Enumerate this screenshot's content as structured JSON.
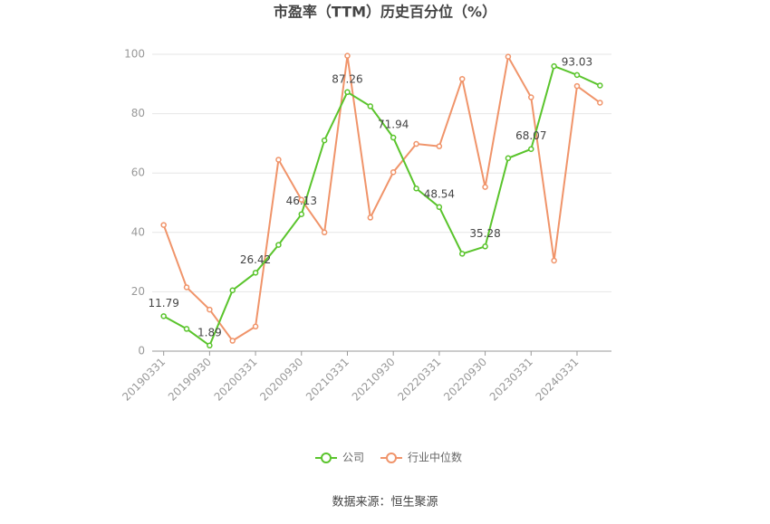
{
  "chart_data": {
    "type": "line",
    "title": "市盈率（TTM）历史百分位（%）",
    "source": "数据来源：恒生聚源",
    "categories": [
      "20190331",
      null,
      "20190930",
      null,
      "20200331",
      null,
      "20200930",
      null,
      "20210331",
      null,
      "20210930",
      null,
      "20220331",
      null,
      "20220930",
      null,
      "20230331",
      null,
      "20240331",
      null
    ],
    "series": [
      {
        "name": "公司",
        "color": "#5ac42c",
        "values": [
          11.79,
          7.5,
          1.89,
          20.5,
          26.42,
          35.8,
          46.13,
          71,
          87.26,
          82.5,
          71.94,
          54.8,
          48.54,
          32.8,
          35.28,
          65,
          68.07,
          96,
          93.03,
          89.5
        ],
        "value_labels": [
          "11.79",
          null,
          "1.89",
          null,
          "26.42",
          null,
          "46.13",
          null,
          "87.26",
          null,
          "71.94",
          null,
          "48.54",
          null,
          "35.28",
          null,
          "68.07",
          null,
          "93.03",
          null
        ]
      },
      {
        "name": "行业中位数",
        "color": "#f0946a",
        "values": [
          42.5,
          21.5,
          14,
          3.5,
          8.3,
          64.5,
          51,
          40,
          99.5,
          45,
          60.3,
          69.8,
          69,
          91.7,
          55.3,
          99.2,
          85.5,
          30.5,
          89.3,
          83.7
        ]
      }
    ],
    "ylim": [
      0,
      100
    ],
    "yticks": [
      0,
      20,
      40,
      60,
      80,
      100
    ],
    "grid": true,
    "legend": "bottom"
  }
}
